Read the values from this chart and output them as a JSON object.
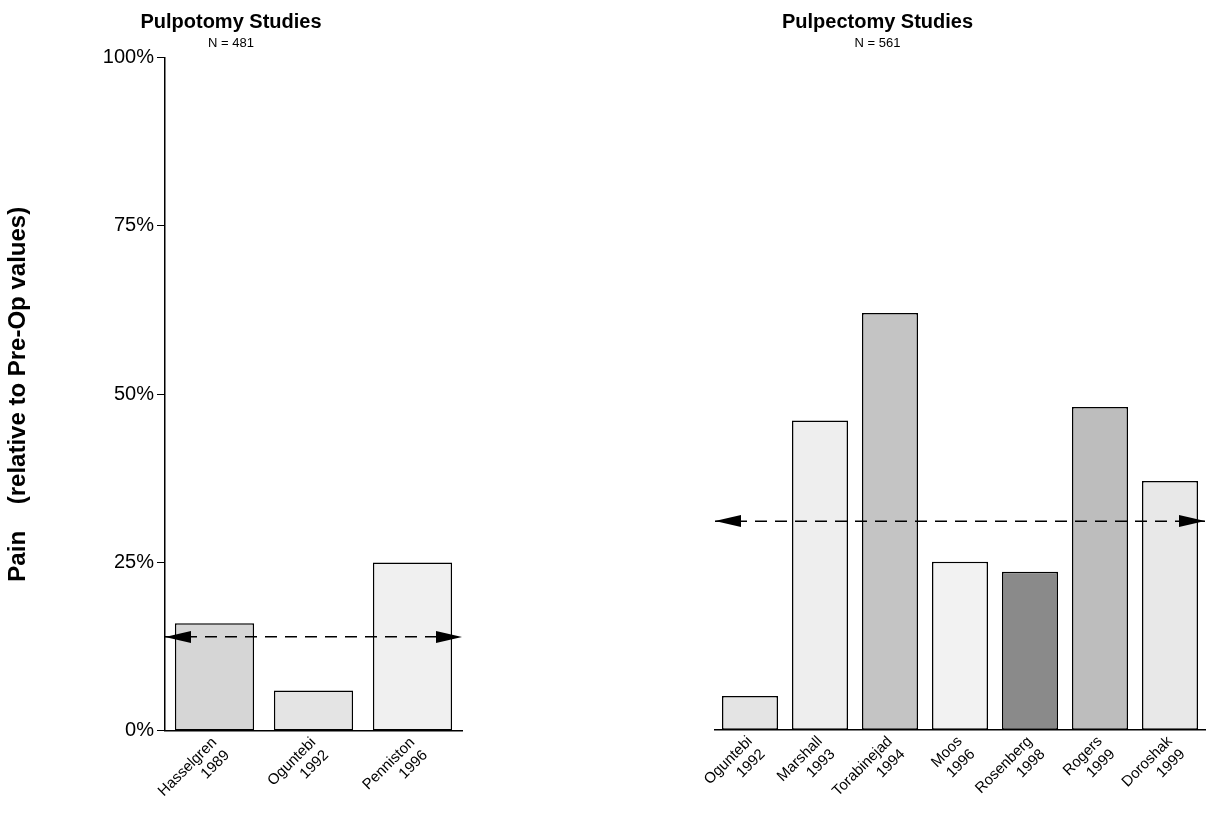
{
  "chart_data": [
    {
      "type": "bar",
      "title": "Pulpotomy Studies",
      "subtitle": "N = 481",
      "ylabel": "Pain    (relative to Pre-Op values)",
      "categories": [
        "Hasselgren 1989",
        "Oguntebi 1992",
        "Penniston 1996"
      ],
      "values": [
        16,
        6,
        25
      ],
      "colors": [
        "#d6d6d6",
        "#e4e4e4",
        "#f0f0f0"
      ],
      "ylim": [
        0,
        100
      ],
      "yticks": [
        {
          "value": 0,
          "label": "0%"
        },
        {
          "value": 25,
          "label": "25%"
        },
        {
          "value": 50,
          "label": "50%"
        },
        {
          "value": 75,
          "label": "75%"
        },
        {
          "value": 100,
          "label": "100%"
        }
      ],
      "grid": false,
      "legend": false,
      "ref_lines": [
        {
          "axis": "y",
          "value": 14,
          "color": "#000000",
          "line_style": "dashed"
        }
      ]
    },
    {
      "type": "bar",
      "title": "Pulpectomy Studies",
      "subtitle": "N = 561",
      "categories": [
        "Oguntebi 1992",
        "Marshall 1993",
        "Torabinejad 1994",
        "Moos 1996",
        "Rosenberg 1998",
        "Rogers 1999",
        "Doroshak 1999"
      ],
      "values": [
        5,
        46,
        62,
        25,
        23.5,
        48,
        37
      ],
      "colors": [
        "#e4e4e4",
        "#eeeeee",
        "#c4c4c4",
        "#f2f2f2",
        "#8a8a8a",
        "#bdbdbd",
        "#e8e8e8"
      ],
      "ylim": [
        0,
        100
      ],
      "grid": false,
      "legend": false,
      "tick_labels": "x",
      "ref_lines": [
        {
          "axis": "y",
          "value": 31,
          "color": "#000000",
          "line_style": "dashed"
        }
      ]
    }
  ]
}
